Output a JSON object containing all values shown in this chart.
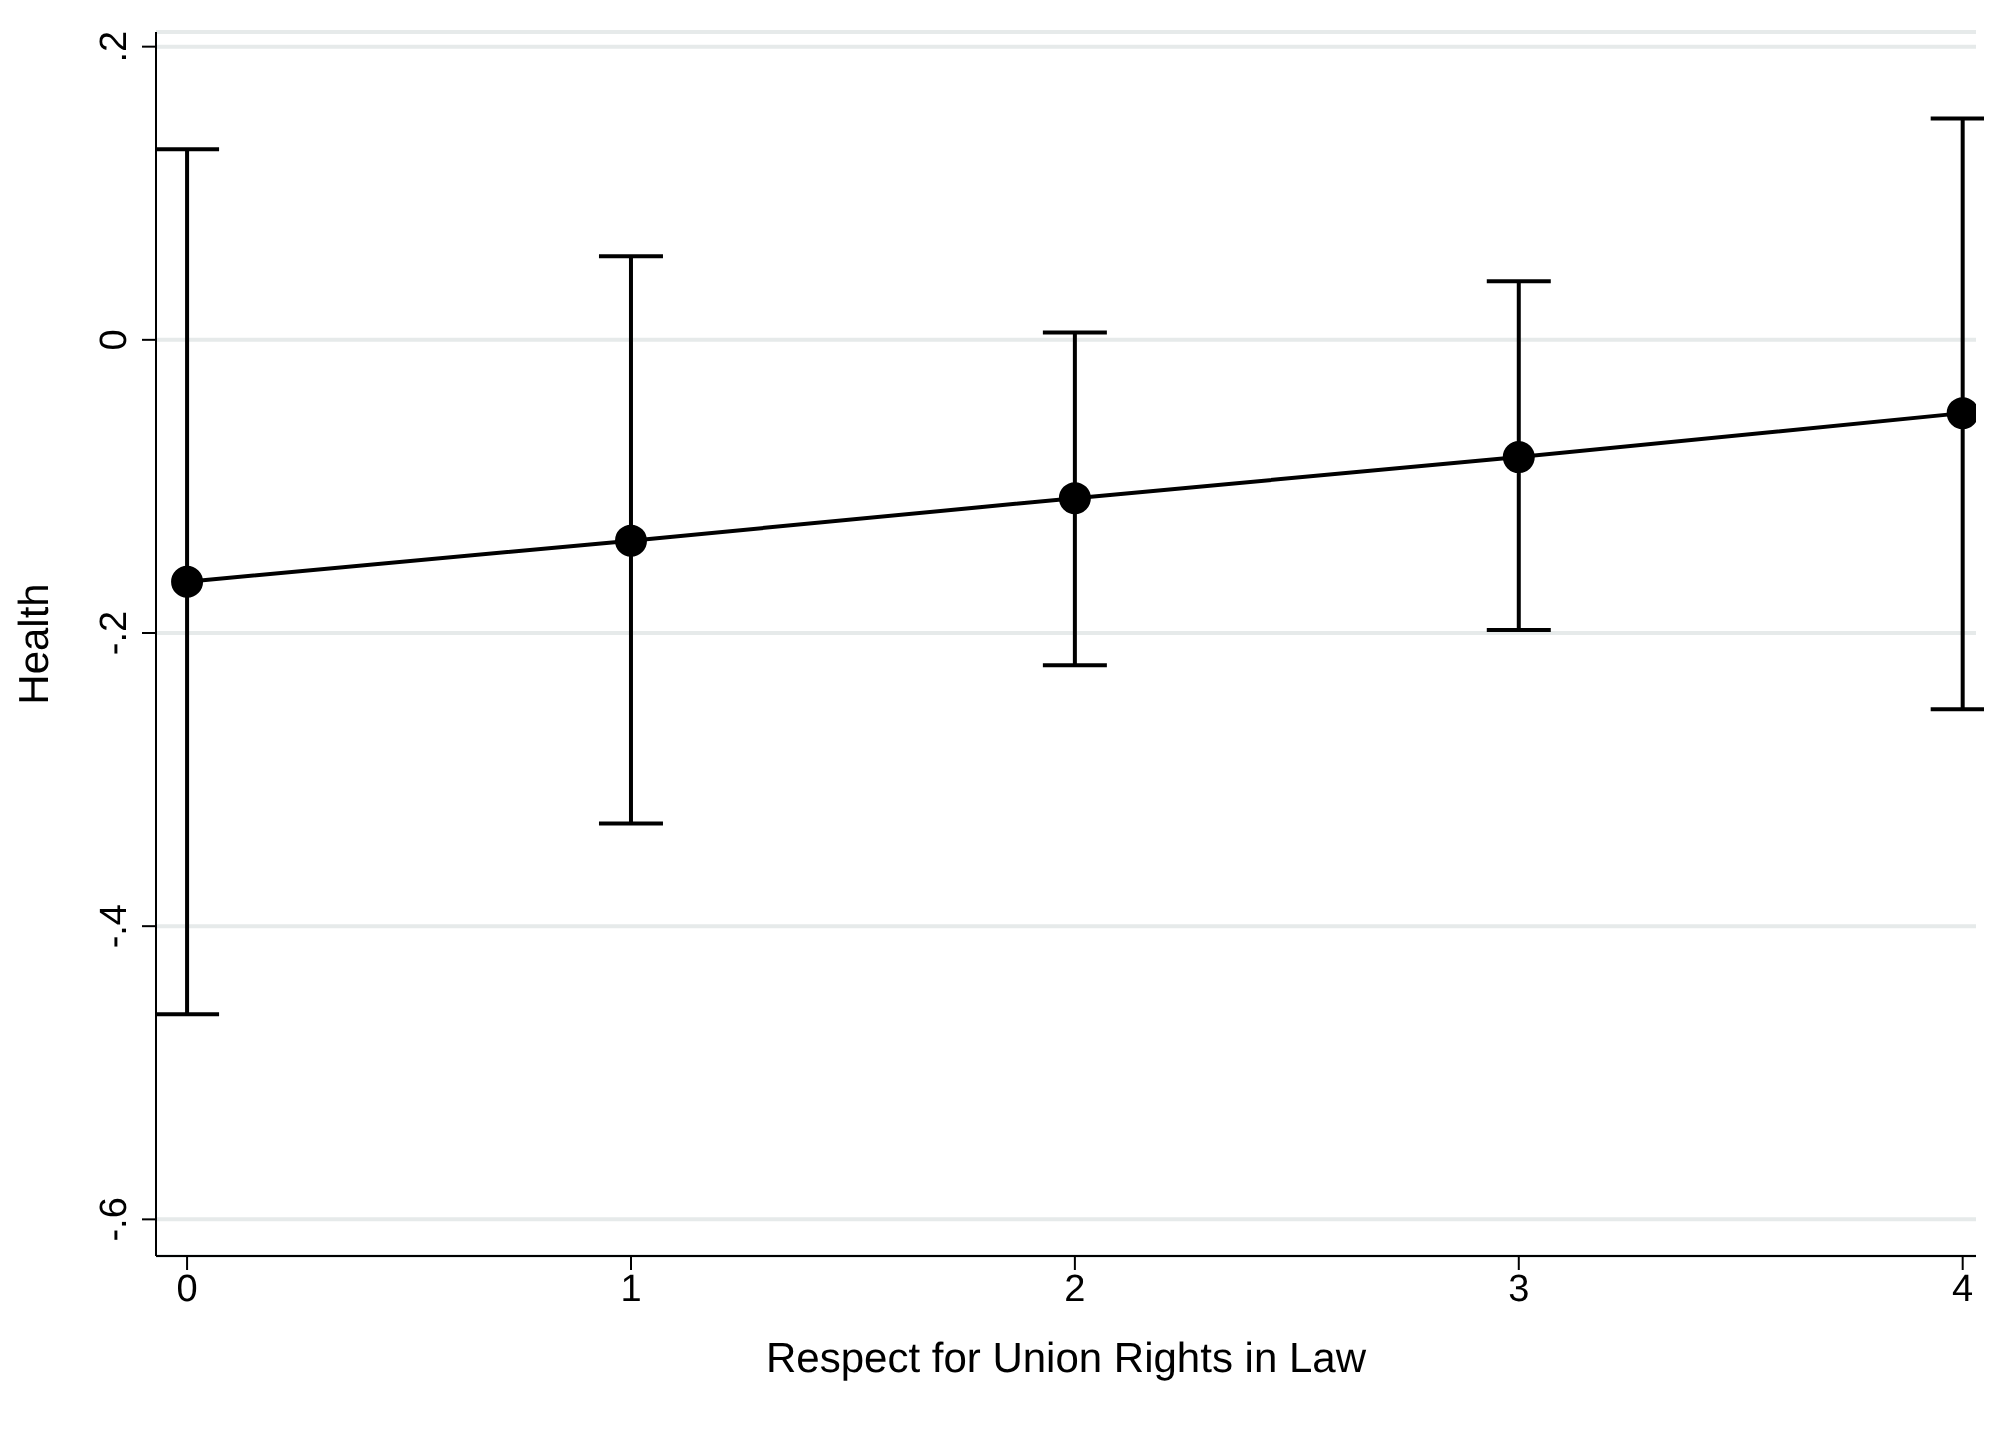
{
  "chart_data": {
    "type": "line",
    "xlabel": "Respect for Union Rights in Law",
    "ylabel": "Health",
    "x": [
      0,
      1,
      2,
      3,
      4
    ],
    "series": [
      {
        "color": "#000000",
        "values": [
          -0.165,
          -0.137,
          -0.108,
          -0.08,
          -0.05
        ],
        "errors": [
          [
            -0.46,
            0.13
          ],
          [
            -0.33,
            0.057
          ],
          [
            -0.222,
            0.005
          ],
          [
            -0.198,
            0.04
          ],
          [
            -0.252,
            0.151
          ]
        ]
      }
    ],
    "xlim": [
      -0.07,
      4.03
    ],
    "xticks": [
      0,
      1,
      2,
      3,
      4
    ],
    "ylim": [
      -0.625,
      0.21
    ],
    "yticks": [
      {
        "value": -0.6,
        "label": "-.6"
      },
      {
        "value": -0.4,
        "label": "-.4"
      },
      {
        "value": -0.2,
        "label": "-.2"
      },
      0,
      {
        "value": 0.2,
        "label": ".2"
      }
    ],
    "grid": "y",
    "marker": "circle",
    "line_style": "solid"
  }
}
